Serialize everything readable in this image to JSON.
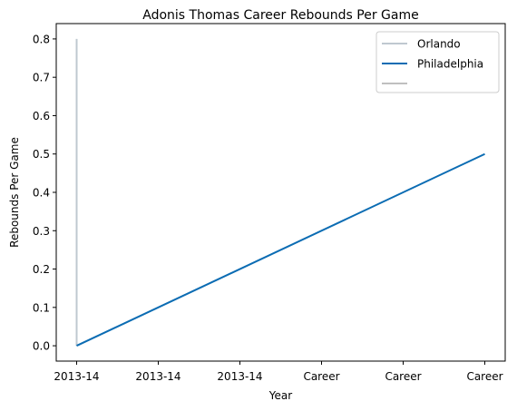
{
  "chart_data": {
    "type": "line",
    "title": "Adonis Thomas Career Rebounds Per Game",
    "xlabel": "Year",
    "ylabel": "Rebounds Per Game",
    "x_tick_labels": [
      "2013-14",
      "2013-14",
      "2013-14",
      "Career",
      "Career",
      "Career"
    ],
    "xlim": [
      -0.05,
      1.05
    ],
    "ylim": [
      -0.04,
      0.84
    ],
    "y_ticks": [
      0.0,
      0.1,
      0.2,
      0.3,
      0.4,
      0.5,
      0.6,
      0.7,
      0.8
    ],
    "y_tick_labels": [
      "0.0",
      "0.1",
      "0.2",
      "0.3",
      "0.4",
      "0.5",
      "0.6",
      "0.7",
      "0.8"
    ],
    "grid": false,
    "legend_position": "top-right",
    "series": [
      {
        "name": "Orlando",
        "color": "#bfc8d0",
        "x": [
          0,
          0
        ],
        "y": [
          0.0,
          0.8
        ]
      },
      {
        "name": "Philadelphia",
        "color": "#0b6cb3",
        "x": [
          0,
          1
        ],
        "y": [
          0.0,
          0.5
        ]
      },
      {
        "name": "",
        "color": "#bfbfbf",
        "x": [],
        "y": []
      }
    ]
  }
}
